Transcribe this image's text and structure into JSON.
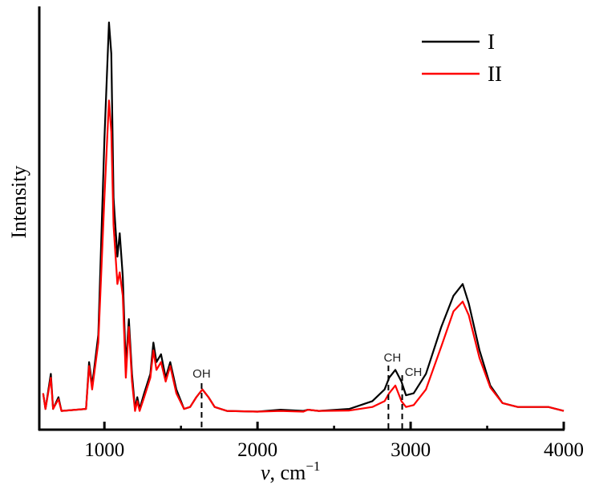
{
  "chart_data": {
    "type": "line",
    "title": "",
    "xlabel": "v, cm^-1",
    "xlabel_parts": {
      "symbol": "v",
      "unit": ", cm",
      "exp": "−1"
    },
    "ylabel": "Intensity",
    "xlim": [
      580,
      4000
    ],
    "ylim": [
      0,
      100
    ],
    "x_ticks": [
      1000,
      2000,
      3000,
      4000
    ],
    "x_tick_labels": [
      "1000",
      "2000",
      "3000",
      "4000"
    ],
    "x_minor_ticks": [
      1500,
      2500,
      3500
    ],
    "y_ticks": [],
    "grid": false,
    "legend_position": "upper right",
    "x": [
      600,
      615,
      650,
      665,
      700,
      720,
      880,
      900,
      920,
      960,
      1000,
      1030,
      1045,
      1060,
      1085,
      1100,
      1120,
      1140,
      1160,
      1180,
      1200,
      1215,
      1230,
      1260,
      1300,
      1320,
      1340,
      1370,
      1400,
      1430,
      1470,
      1520,
      1560,
      1600,
      1640,
      1680,
      1720,
      1800,
      2000,
      2150,
      2300,
      2330,
      2400,
      2600,
      2750,
      2830,
      2860,
      2900,
      2940,
      2970,
      3020,
      3100,
      3200,
      3280,
      3340,
      3380,
      3450,
      3520,
      3600,
      3700,
      3800,
      3900,
      4000
    ],
    "series": [
      {
        "name": "I",
        "color": "#000000",
        "values": [
          5,
          1,
          10,
          1,
          4,
          0.5,
          1,
          13,
          7,
          20,
          70,
          100,
          92,
          55,
          40,
          46,
          35,
          12,
          24,
          10,
          1,
          4,
          1,
          5,
          10,
          18,
          13,
          15,
          9,
          13,
          6,
          1,
          1.5,
          4,
          6,
          4,
          1.5,
          0.5,
          0.3,
          0.8,
          0.5,
          0.8,
          0.5,
          1,
          3,
          6,
          9,
          11,
          8,
          4.5,
          5,
          10,
          22,
          30,
          33,
          28,
          16,
          7,
          2.5,
          1.5,
          1.5,
          1.5,
          0.5
        ]
      },
      {
        "name": "II",
        "color": "#ff0000",
        "values": [
          5,
          1,
          9,
          1,
          3.5,
          0.5,
          1,
          12,
          6,
          18,
          55,
          80,
          72,
          48,
          33,
          36,
          30,
          9,
          22,
          8,
          0.5,
          3,
          0.5,
          4,
          9,
          16,
          11,
          13,
          8,
          12,
          5,
          1,
          1.5,
          4,
          6,
          4,
          1.5,
          0.5,
          0.3,
          0.5,
          0.3,
          0.8,
          0.5,
          0.6,
          1.5,
          3,
          5,
          7,
          3,
          1.5,
          2,
          6,
          17,
          26,
          28.5,
          25,
          14,
          6.5,
          2.5,
          1.5,
          1.5,
          1.5,
          0.5
        ]
      }
    ],
    "annotations": [
      {
        "label": "OH",
        "x": 1635,
        "peak": 6
      },
      {
        "label": "CH",
        "x": 2855,
        "peak": 9
      },
      {
        "label": "CH",
        "x": 2945,
        "peak": 8
      }
    ]
  }
}
